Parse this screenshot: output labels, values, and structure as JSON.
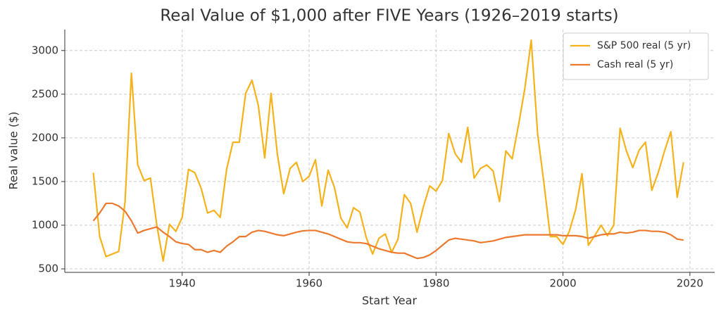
{
  "chart_data": {
    "type": "line",
    "title": "Real Value of $1,000 after FIVE Years (1926–2019 starts)",
    "x_label": "Start Year",
    "y_label": "Real value ($)",
    "x": [
      1926,
      1927,
      1928,
      1929,
      1930,
      1931,
      1932,
      1933,
      1934,
      1935,
      1936,
      1937,
      1938,
      1939,
      1940,
      1941,
      1942,
      1943,
      1944,
      1945,
      1946,
      1947,
      1948,
      1949,
      1950,
      1951,
      1952,
      1953,
      1954,
      1955,
      1956,
      1957,
      1958,
      1959,
      1960,
      1961,
      1962,
      1963,
      1964,
      1965,
      1966,
      1967,
      1968,
      1969,
      1970,
      1971,
      1972,
      1973,
      1974,
      1975,
      1976,
      1977,
      1978,
      1979,
      1980,
      1981,
      1982,
      1983,
      1984,
      1985,
      1986,
      1987,
      1988,
      1989,
      1990,
      1991,
      1992,
      1993,
      1994,
      1995,
      1996,
      1997,
      1998,
      1999,
      2000,
      2001,
      2002,
      2003,
      2004,
      2005,
      2006,
      2007,
      2008,
      2009,
      2010,
      2011,
      2012,
      2013,
      2014,
      2015,
      2016,
      2017,
      2018,
      2019
    ],
    "series": [
      {
        "name": "S&P 500 real (5 yr)",
        "color": "#f5b21b",
        "values": [
          1600,
          870,
          640,
          670,
          700,
          1270,
          2740,
          1690,
          1510,
          1540,
          1000,
          590,
          1010,
          930,
          1090,
          1640,
          1600,
          1420,
          1140,
          1170,
          1090,
          1640,
          1950,
          1950,
          2510,
          2660,
          2370,
          1770,
          2510,
          1810,
          1360,
          1650,
          1720,
          1500,
          1560,
          1750,
          1220,
          1630,
          1430,
          1080,
          970,
          1200,
          1150,
          860,
          670,
          850,
          900,
          690,
          840,
          1350,
          1250,
          920,
          1210,
          1450,
          1390,
          1510,
          2050,
          1820,
          1720,
          2120,
          1540,
          1650,
          1690,
          1620,
          1270,
          1850,
          1760,
          2150,
          2570,
          3120,
          2050,
          1480,
          870,
          870,
          780,
          930,
          1180,
          1590,
          770,
          880,
          1000,
          880,
          1000,
          2110,
          1850,
          1660,
          1860,
          1950,
          1400,
          1600,
          1850,
          2070,
          1320,
          1720
        ]
      },
      {
        "name": "Cash real (5 yr)",
        "color": "#ec7a2e",
        "values": [
          1050,
          1140,
          1250,
          1250,
          1220,
          1160,
          1050,
          910,
          940,
          960,
          980,
          920,
          870,
          810,
          790,
          780,
          720,
          720,
          690,
          710,
          690,
          760,
          810,
          870,
          870,
          920,
          940,
          930,
          910,
          890,
          880,
          900,
          920,
          935,
          940,
          940,
          920,
          900,
          870,
          840,
          810,
          800,
          800,
          790,
          760,
          730,
          710,
          690,
          680,
          680,
          650,
          620,
          630,
          660,
          710,
          770,
          830,
          850,
          840,
          830,
          820,
          800,
          810,
          820,
          840,
          860,
          870,
          880,
          890,
          890,
          890,
          890,
          890,
          890,
          880,
          880,
          880,
          870,
          850,
          870,
          890,
          900,
          900,
          920,
          910,
          920,
          940,
          940,
          930,
          930,
          920,
          890,
          840,
          830
        ]
      }
    ],
    "xlim": [
      1921.5,
      2023.9
    ],
    "ylim": [
      460,
      3240
    ],
    "xticks": [
      1940,
      1960,
      1980,
      2000,
      2020
    ],
    "yticks": [
      500,
      1000,
      1500,
      2000,
      2500,
      3000
    ],
    "grid": true,
    "legend": "upper right"
  }
}
